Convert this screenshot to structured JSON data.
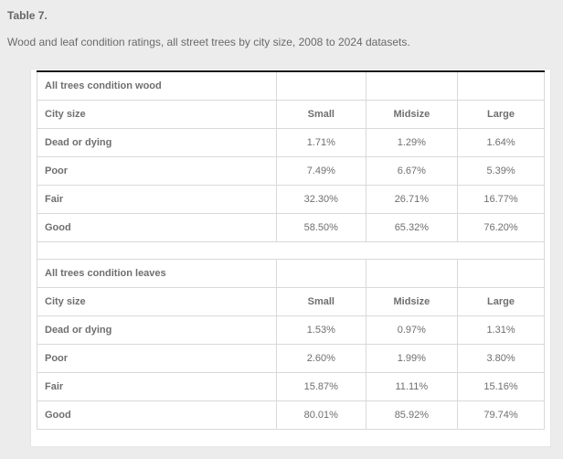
{
  "header": {
    "title": "Table 7.",
    "subtitle": "Wood and leaf condition ratings, all street trees by city size, 2008 to 2024 datasets."
  },
  "table": {
    "columns": [
      "City size",
      "Small",
      "Midsize",
      "Large"
    ],
    "sections": [
      {
        "header": "All trees condition wood",
        "rows": [
          {
            "label": "Dead or dying",
            "values": [
              "1.71%",
              "1.29%",
              "1.64%"
            ]
          },
          {
            "label": "Poor",
            "values": [
              "7.49%",
              "6.67%",
              "5.39%"
            ]
          },
          {
            "label": "Fair",
            "values": [
              "32.30%",
              "26.71%",
              "16.77%"
            ]
          },
          {
            "label": "Good",
            "values": [
              "58.50%",
              "65.32%",
              "76.20%"
            ]
          }
        ]
      },
      {
        "header": "All trees condition leaves",
        "rows": [
          {
            "label": "Dead or dying",
            "values": [
              "1.53%",
              "0.97%",
              "1.31%"
            ]
          },
          {
            "label": "Poor",
            "values": [
              "2.60%",
              "1.99%",
              "3.80%"
            ]
          },
          {
            "label": "Fair",
            "values": [
              "15.87%",
              "11.11%",
              "15.16%"
            ]
          },
          {
            "label": "Good",
            "values": [
              "80.01%",
              "85.92%",
              "79.74%"
            ]
          }
        ]
      }
    ]
  },
  "colors": {
    "page_background": "#ececec",
    "panel_background": "#ffffff",
    "table_top_rule": "#161616",
    "cell_border": "#d9d9d9",
    "label_text": "#636363",
    "value_text": "#6f6f6f"
  }
}
